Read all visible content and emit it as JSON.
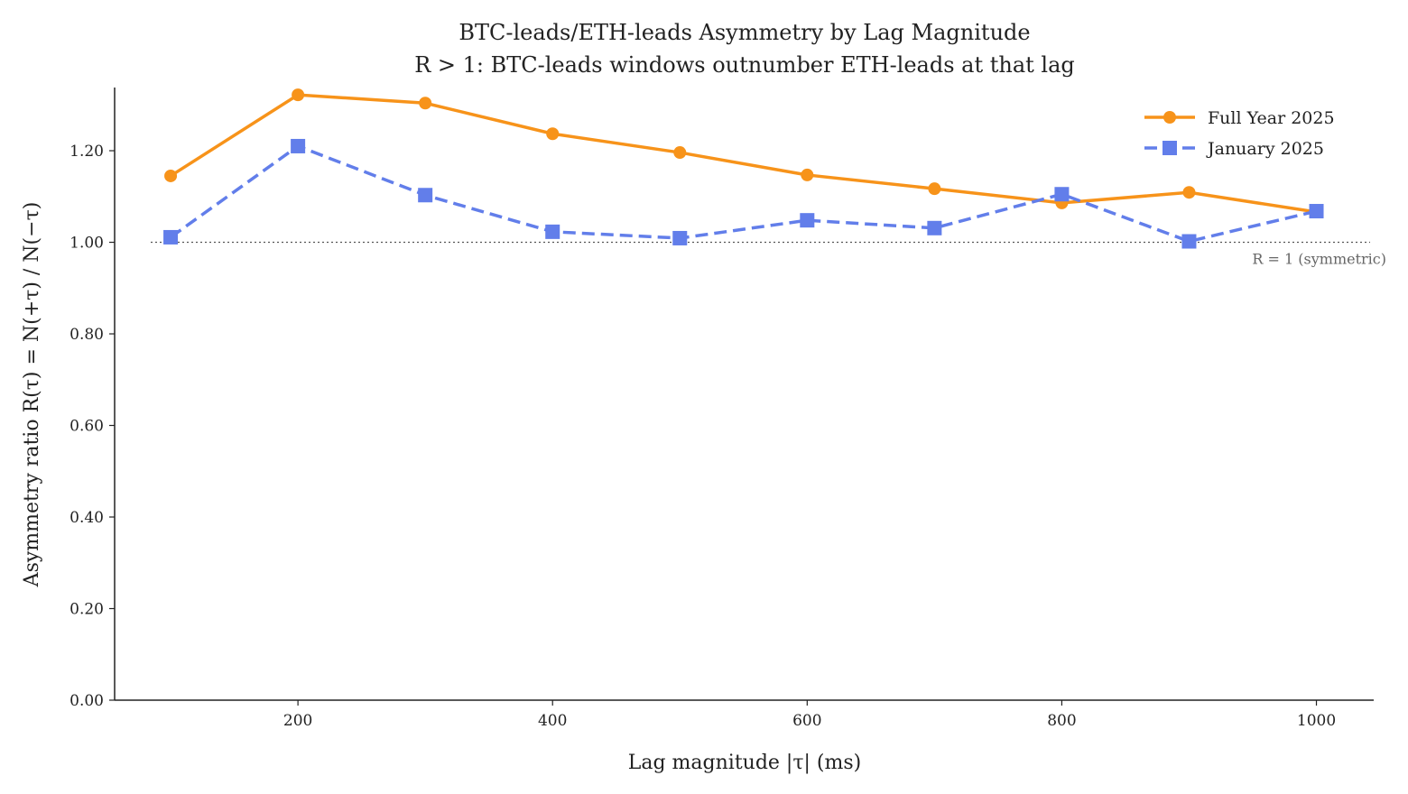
{
  "chart_data": {
    "type": "line",
    "title": "BTC-leads/ETH-leads Asymmetry by Lag Magnitude",
    "subtitle": "R > 1: BTC-leads windows outnumber ETH-leads at that lag",
    "xlabel": "Lag magnitude |τ| (ms)",
    "ylabel": "Asymmetry ratio R(τ) = N(+τ) / N(−τ)",
    "xlim": [
      56,
      1045
    ],
    "ylim": [
      0,
      1.338
    ],
    "xticks": [
      200,
      400,
      600,
      800,
      1000
    ],
    "yticks": [
      0,
      0.2,
      0.4,
      0.6,
      0.8,
      1.0,
      1.2
    ],
    "ytick_labels": [
      "0.00",
      "0.20",
      "0.40",
      "0.60",
      "0.80",
      "1.00",
      "1.20"
    ],
    "x": [
      100,
      200,
      300,
      400,
      500,
      600,
      700,
      800,
      900,
      1000
    ],
    "series": [
      {
        "name": "Full Year 2025",
        "color": "#f7931a",
        "style": "solid",
        "marker": "circle",
        "values": [
          1.145,
          1.322,
          1.304,
          1.237,
          1.196,
          1.147,
          1.117,
          1.086,
          1.109,
          1.066
        ]
      },
      {
        "name": "January 2025",
        "color": "#627eea",
        "style": "dashed",
        "marker": "square",
        "values": [
          1.011,
          1.21,
          1.103,
          1.023,
          1.009,
          1.048,
          1.031,
          1.105,
          1.002,
          1.068
        ]
      }
    ],
    "reference_line": {
      "y": 1.0,
      "label": "R = 1 (symmetric)",
      "style": "dotted"
    },
    "legend": "top-right",
    "grid": false
  }
}
